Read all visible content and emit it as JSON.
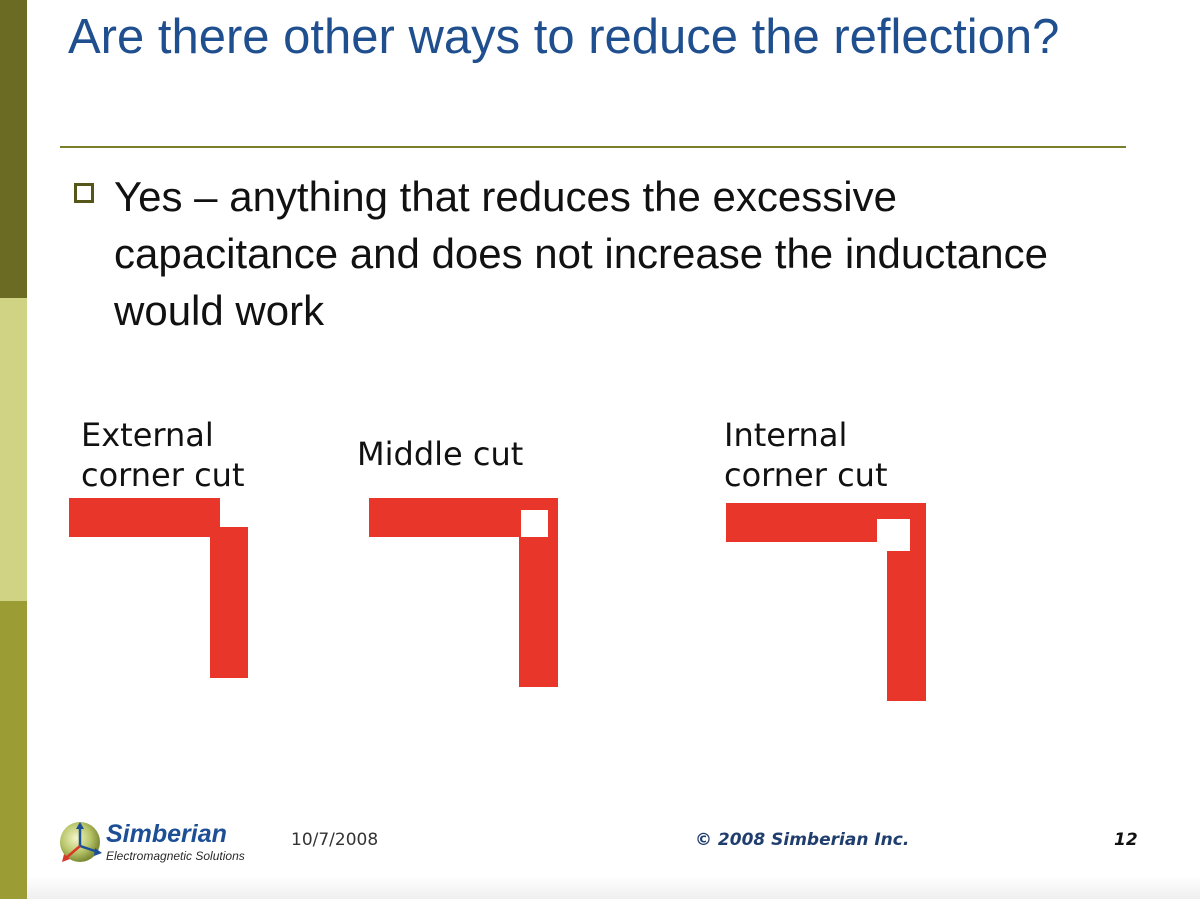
{
  "slide": {
    "title": "Are there other ways to reduce the reflection?",
    "bullet": "Yes – anything that reduces the excessive capacitance and does not increase the inductance would work",
    "figures": {
      "external": {
        "label_line1": "External",
        "label_line2": "corner cut"
      },
      "middle": {
        "label": "Middle cut"
      },
      "internal": {
        "label_line1": "Internal",
        "label_line2": "corner cut"
      }
    },
    "footer": {
      "logo_name": "Simberian",
      "logo_tagline": "Electromagnetic Solutions",
      "date": "10/7/2008",
      "copyright": "© 2008 Simberian Inc.",
      "page_number": "12"
    }
  },
  "colors": {
    "title": "#1f4f8e",
    "trace": "#e8372a",
    "bar_dark": "#6b6b23",
    "bar_light": "#cfd383",
    "bar_mid": "#9b9c33"
  }
}
